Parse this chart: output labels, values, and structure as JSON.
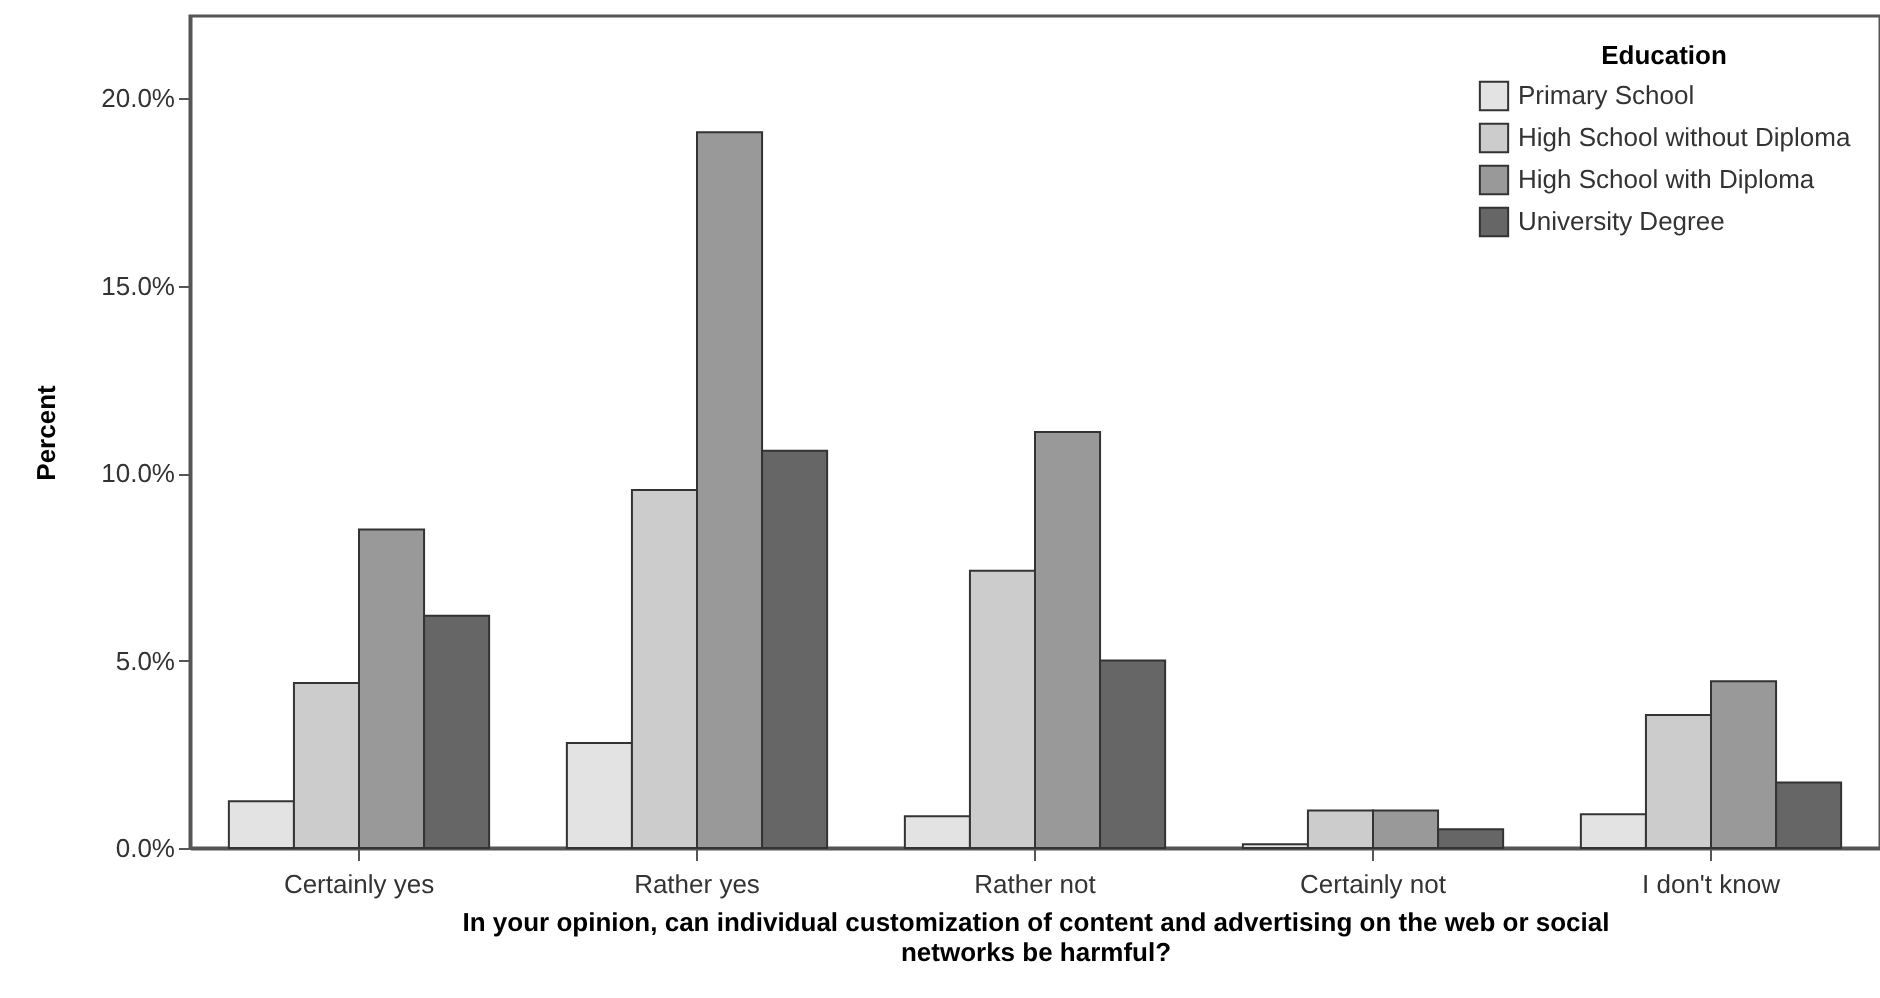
{
  "chart_data": {
    "type": "bar",
    "categories": [
      "Certainly yes",
      "Rather yes",
      "Rather not",
      "Certainly not",
      "I don't know"
    ],
    "xlabel": "In your opinion, can individual customization of content and advertising on the web or social networks be harmful?",
    "ylabel": "Percent",
    "legend_title": "Education",
    "legend": "top right",
    "grid": false,
    "ylim": [
      0,
      22.2
    ],
    "yticks": [
      {
        "value": 0,
        "label": "0.0%"
      },
      {
        "value": 5,
        "label": "5.0%"
      },
      {
        "value": 10,
        "label": "10.0%"
      },
      {
        "value": 15,
        "label": "15.0%"
      },
      {
        "value": 20,
        "label": "20.0%"
      }
    ],
    "series": [
      {
        "name": "Primary School",
        "color": "#e3e3e3",
        "values": [
          1.25,
          2.8,
          0.85,
          0.1,
          0.9
        ]
      },
      {
        "name": "High School without Diploma",
        "color": "#cccccc",
        "values": [
          4.4,
          9.55,
          7.4,
          1.0,
          3.55
        ]
      },
      {
        "name": "High School with Diploma",
        "color": "#999999",
        "values": [
          8.5,
          19.1,
          11.1,
          1.0,
          4.45
        ]
      },
      {
        "name": "University Degree",
        "color": "#666666",
        "values": [
          6.2,
          10.6,
          5.0,
          0.5,
          1.75
        ]
      }
    ]
  }
}
